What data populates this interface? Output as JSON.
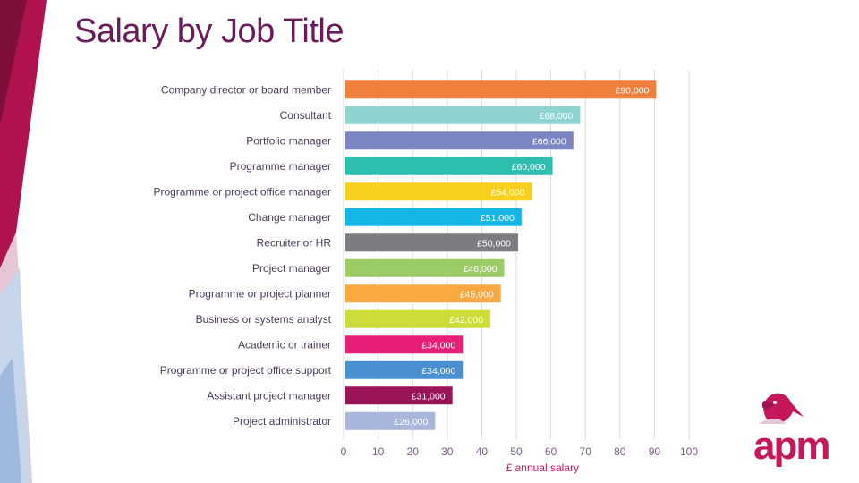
{
  "page": {
    "title": "Salary by Job Title"
  },
  "brand": {
    "logo_text": "apm",
    "accent": "#c4175c",
    "title_color": "#6a1b5e"
  },
  "chart_data": {
    "type": "bar",
    "orientation": "horizontal",
    "title": "Salary by Job Title",
    "xlabel": "£ annual salary",
    "ylabel": "",
    "xlim": [
      0,
      100
    ],
    "x_ticks": [
      0,
      10,
      20,
      30,
      40,
      50,
      60,
      70,
      80,
      90,
      100
    ],
    "grid": true,
    "categories": [
      "Company director or board member",
      "Consultant",
      "Portfolio manager",
      "Programme manager",
      "Programme or project office manager",
      "Change manager",
      "Recruiter or HR",
      "Project manager",
      "Programme or project planner",
      "Business or systems analyst",
      "Academic or trainer",
      "Programme or project office support",
      "Assistant project manager",
      "Project administrator"
    ],
    "values": [
      90,
      68,
      66,
      60,
      54,
      51,
      50,
      46,
      45,
      42,
      34,
      34,
      31,
      26
    ],
    "labels": [
      "£90,000",
      "£68,000",
      "£66,000",
      "£60,000",
      "£54,000",
      "£51,000",
      "£50,000",
      "£46,000",
      "£45,000",
      "£42,000",
      "£34,000",
      "£34,000",
      "£31,000",
      "£26,000"
    ],
    "colors": [
      "#f07f3c",
      "#8fd3d1",
      "#7a85c1",
      "#2cbfb0",
      "#f9cf1e",
      "#14b6e6",
      "#7b7d80",
      "#9ccc65",
      "#f9a842",
      "#cddc39",
      "#e91e78",
      "#4a90d0",
      "#9c1458",
      "#a9b6dc"
    ]
  }
}
